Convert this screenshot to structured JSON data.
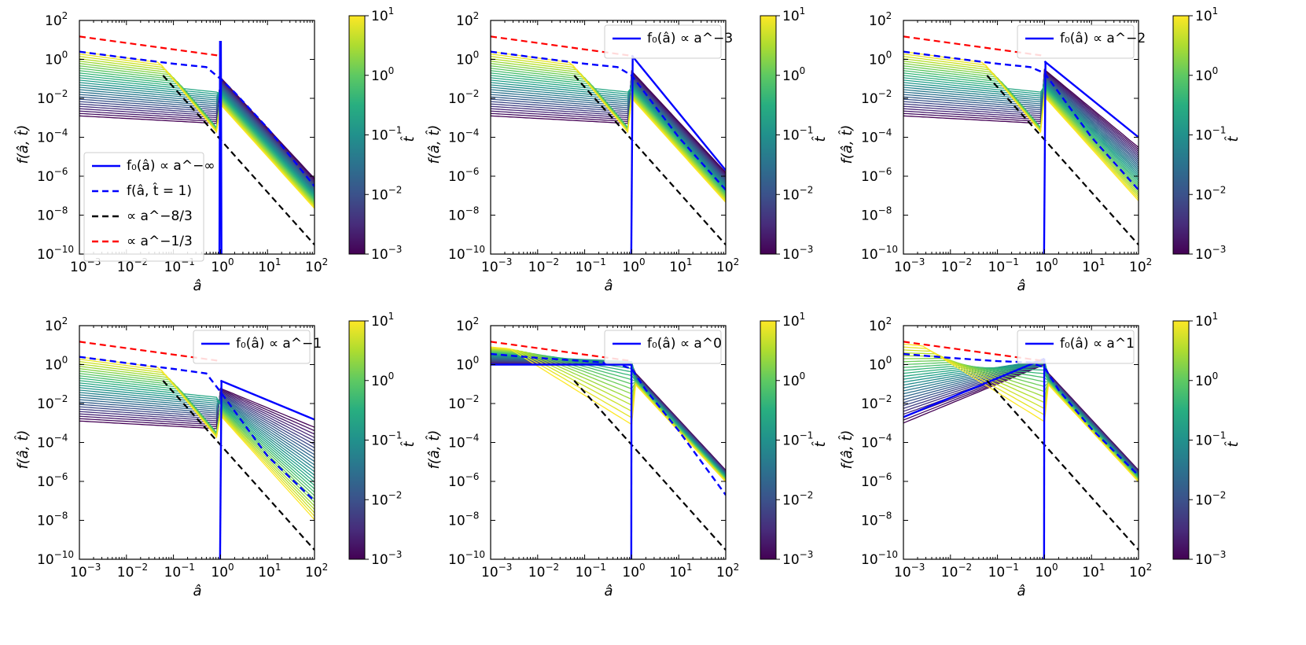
{
  "chart_data": [
    {
      "type": "line",
      "panel": "top-left",
      "initial_slope_label": "-∞",
      "xlabel": "â",
      "ylabel": "f(â, t̂)",
      "xlim": [
        0.001,
        100
      ],
      "ylim": [
        1e-10,
        100
      ],
      "x_ticks": [
        -3,
        -2,
        -1,
        0,
        1,
        2
      ],
      "y_ticks": [
        -10,
        -8,
        -6,
        -4,
        -2,
        0,
        2
      ],
      "legend": {
        "placement": "center-left",
        "entries": [
          {
            "label": "f₀(â) ∝ a^−∞",
            "color": "#0000ff",
            "dash": "solid"
          },
          {
            "label": "f(â, t̂ = 1)",
            "color": "#0000ff",
            "dash": "dashed"
          },
          {
            "label": "∝ a^−8/3",
            "color": "#000000",
            "dash": "dashed"
          },
          {
            "label": "∝ a^−1/3",
            "color": "#ff0000",
            "dash": "dashed"
          }
        ]
      },
      "colorbar": {
        "label": "t̂",
        "range": [
          0.001,
          10
        ],
        "ticks": [
          -3,
          -2,
          -1,
          0,
          1
        ],
        "colormap": "viridis"
      },
      "series": [
        {
          "name": "f(â, t̂=1)",
          "x": [
            0.001,
            0.01,
            0.1,
            0.5,
            1,
            2,
            10,
            100
          ],
          "y": [
            2.5,
            1.2,
            0.6,
            0.4,
            0.1,
            0.02,
            0.0003,
            3e-07
          ]
        },
        {
          "name": "∝ a^−8/3",
          "x": [
            0.06,
            100
          ],
          "y": [
            0.15,
            3e-10
          ]
        },
        {
          "name": "∝ a^−1/3",
          "x": [
            0.001,
            0.85
          ],
          "y": [
            15,
            1.6
          ]
        }
      ]
    },
    {
      "type": "line",
      "panel": "top-middle",
      "initial_slope_label": "-3",
      "xlabel": "â",
      "ylabel": "f(â, t̂)",
      "xlim": [
        0.001,
        100
      ],
      "ylim": [
        1e-10,
        100
      ],
      "x_ticks": [
        -3,
        -2,
        -1,
        0,
        1,
        2
      ],
      "y_ticks": [
        -10,
        -8,
        -6,
        -4,
        -2,
        0,
        2
      ],
      "legend": {
        "placement": "top-right",
        "entries": [
          {
            "label": "f₀(â) ∝ a^−3",
            "color": "#0000ff",
            "dash": "solid"
          }
        ]
      },
      "colorbar": {
        "label": "t̂",
        "range": [
          0.001,
          10
        ],
        "ticks": [
          -3,
          -2,
          -1,
          0,
          1
        ],
        "colormap": "viridis"
      },
      "series": [
        {
          "name": "f₀(â)",
          "x": [
            1,
            100
          ],
          "y": [
            1.6,
            2e-06
          ]
        },
        {
          "name": "f(â, t̂=1)",
          "x": [
            0.001,
            0.01,
            0.1,
            0.5,
            1,
            10,
            100
          ],
          "y": [
            2.5,
            1.2,
            0.6,
            0.4,
            0.15,
            0.0001,
            2e-07
          ]
        },
        {
          "name": "∝ a^−8/3",
          "x": [
            0.06,
            100
          ],
          "y": [
            0.15,
            3e-10
          ]
        },
        {
          "name": "∝ a^−1/3",
          "x": [
            0.001,
            0.85
          ],
          "y": [
            15,
            1.6
          ]
        }
      ]
    },
    {
      "type": "line",
      "panel": "top-right",
      "initial_slope_label": "-2",
      "xlabel": "â",
      "ylabel": "f(â, t̂)",
      "xlim": [
        0.001,
        100
      ],
      "ylim": [
        1e-10,
        100
      ],
      "x_ticks": [
        -3,
        -2,
        -1,
        0,
        1,
        2
      ],
      "y_ticks": [
        -10,
        -8,
        -6,
        -4,
        -2,
        0,
        2
      ],
      "legend": {
        "placement": "top-right",
        "entries": [
          {
            "label": "f₀(â) ∝ a^−2",
            "color": "#0000ff",
            "dash": "solid"
          }
        ]
      },
      "colorbar": {
        "label": "t̂",
        "range": [
          0.001,
          10
        ],
        "ticks": [
          -3,
          -2,
          -1,
          0,
          1
        ],
        "colormap": "viridis"
      },
      "series": [
        {
          "name": "f₀(â)",
          "x": [
            1,
            100
          ],
          "y": [
            0.8,
            0.0001
          ]
        },
        {
          "name": "f(â, t̂=1)",
          "x": [
            0.001,
            0.01,
            0.1,
            0.5,
            1,
            10,
            100
          ],
          "y": [
            2.5,
            1.2,
            0.6,
            0.4,
            0.2,
            0.0001,
            2e-07
          ]
        },
        {
          "name": "∝ a^−8/3",
          "x": [
            0.06,
            100
          ],
          "y": [
            0.15,
            3e-10
          ]
        },
        {
          "name": "∝ a^−1/3",
          "x": [
            0.001,
            0.85
          ],
          "y": [
            15,
            1.6
          ]
        }
      ]
    },
    {
      "type": "line",
      "panel": "bottom-left",
      "initial_slope_label": "-1",
      "xlabel": "â",
      "ylabel": "f(â, t̂)",
      "xlim": [
        0.001,
        100
      ],
      "ylim": [
        1e-10,
        100
      ],
      "x_ticks": [
        -3,
        -2,
        -1,
        0,
        1,
        2
      ],
      "y_ticks": [
        -10,
        -8,
        -6,
        -4,
        -2,
        0,
        2
      ],
      "legend": {
        "placement": "top-right",
        "entries": [
          {
            "label": "f₀(â) ∝ a^−1",
            "color": "#0000ff",
            "dash": "solid"
          }
        ]
      },
      "colorbar": {
        "label": "t̂",
        "range": [
          0.001,
          10
        ],
        "ticks": [
          -3,
          -2,
          -1,
          0,
          1
        ],
        "colormap": "viridis"
      },
      "series": [
        {
          "name": "f₀(â)",
          "x": [
            1,
            100
          ],
          "y": [
            0.15,
            0.0015
          ]
        },
        {
          "name": "f(â, t̂=1)",
          "x": [
            0.001,
            0.01,
            0.1,
            0.5,
            1,
            10,
            100
          ],
          "y": [
            2.5,
            1.2,
            0.6,
            0.35,
            0.04,
            2e-05,
            1e-07
          ]
        },
        {
          "name": "∝ a^−8/3",
          "x": [
            0.06,
            100
          ],
          "y": [
            0.15,
            3e-10
          ]
        },
        {
          "name": "∝ a^−1/3",
          "x": [
            0.001,
            0.85
          ],
          "y": [
            15,
            1.6
          ]
        }
      ]
    },
    {
      "type": "line",
      "panel": "bottom-middle",
      "initial_slope_label": "0",
      "xlabel": "â",
      "ylabel": "f(â, t̂)",
      "xlim": [
        0.001,
        100
      ],
      "ylim": [
        1e-10,
        100
      ],
      "x_ticks": [
        -3,
        -2,
        -1,
        0,
        1,
        2
      ],
      "y_ticks": [
        -10,
        -8,
        -6,
        -4,
        -2,
        0,
        2
      ],
      "legend": {
        "placement": "top-right",
        "entries": [
          {
            "label": "f₀(â) ∝ a^0",
            "color": "#0000ff",
            "dash": "solid"
          }
        ]
      },
      "colorbar": {
        "label": "t̂",
        "range": [
          0.001,
          10
        ],
        "ticks": [
          -3,
          -2,
          -1,
          0,
          1
        ],
        "colormap": "viridis"
      },
      "series": [
        {
          "name": "f₀(â)",
          "x": [
            0.001,
            1
          ],
          "y": [
            1,
            1
          ]
        },
        {
          "name": "f(â, t̂=1)",
          "x": [
            0.001,
            0.01,
            0.1,
            0.5,
            1,
            2,
            10,
            100
          ],
          "y": [
            3.5,
            2.2,
            1.5,
            1.1,
            0.6,
            0.05,
            0.0004,
            2e-07
          ]
        },
        {
          "name": "∝ a^−8/3",
          "x": [
            0.06,
            100
          ],
          "y": [
            0.15,
            3e-10
          ]
        },
        {
          "name": "∝ a^−1/3",
          "x": [
            0.001,
            0.85
          ],
          "y": [
            15,
            1.6
          ]
        }
      ]
    },
    {
      "type": "line",
      "panel": "bottom-right",
      "initial_slope_label": "1",
      "xlabel": "â",
      "ylabel": "f(â, t̂)",
      "xlim": [
        0.001,
        100
      ],
      "ylim": [
        1e-10,
        100
      ],
      "x_ticks": [
        -3,
        -2,
        -1,
        0,
        1,
        2
      ],
      "y_ticks": [
        -10,
        -8,
        -6,
        -4,
        -2,
        0,
        2
      ],
      "legend": {
        "placement": "top-right",
        "entries": [
          {
            "label": "f₀(â) ∝ a^1",
            "color": "#0000ff",
            "dash": "solid"
          }
        ]
      },
      "colorbar": {
        "label": "t̂",
        "range": [
          0.001,
          10
        ],
        "ticks": [
          -3,
          -2,
          -1,
          0,
          1
        ],
        "colormap": "viridis"
      },
      "series": [
        {
          "name": "f₀(â)",
          "x": [
            0.001,
            1
          ],
          "y": [
            0.002,
            2
          ]
        },
        {
          "name": "f(â, t̂=1)",
          "x": [
            0.001,
            0.01,
            0.1,
            0.5,
            1,
            2,
            10,
            100
          ],
          "y": [
            3.5,
            2.2,
            1.5,
            1.3,
            0.7,
            0.05,
            0.0005,
            2e-06
          ]
        },
        {
          "name": "∝ a^−8/3",
          "x": [
            0.06,
            100
          ],
          "y": [
            0.15,
            3e-10
          ]
        },
        {
          "name": "∝ a^−1/3",
          "x": [
            0.001,
            0.85
          ],
          "y": [
            15,
            1.6
          ]
        }
      ]
    }
  ]
}
